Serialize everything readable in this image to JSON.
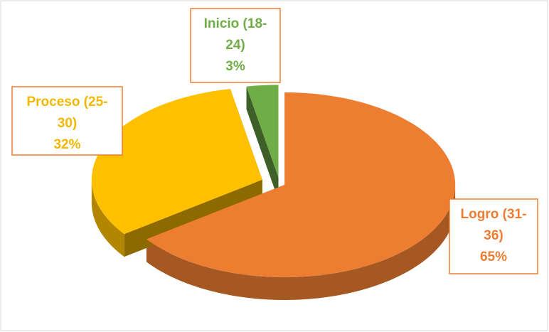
{
  "chart_data": {
    "type": "pie",
    "categories": [
      "Logro (31-36)",
      "Proceso (25-30)",
      "Inicio (18-24)"
    ],
    "values": [
      65,
      32,
      3
    ],
    "value_labels": [
      "65%",
      "32%",
      "3%"
    ],
    "colors": [
      "#ED7D31",
      "#FFC000",
      "#70AD47"
    ]
  }
}
